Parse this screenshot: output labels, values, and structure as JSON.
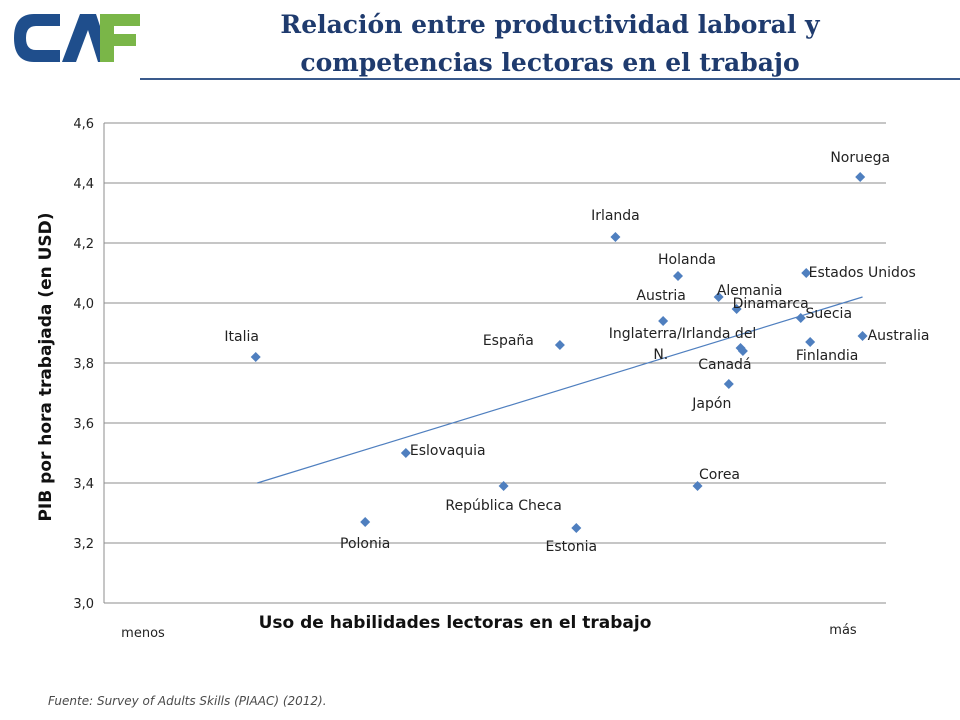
{
  "header": {
    "title_line1": "Relación entre productividad laboral y",
    "title_line2": "competencias lectoras en el trabajo",
    "logo_text": "CAF"
  },
  "colors": {
    "logo_blue": "#1f4e8c",
    "logo_green": "#7ab648",
    "title": "#1f3b6e",
    "marker": "#4f7fbf",
    "trendline": "#4f7fbf",
    "grid": "#8c8c8c"
  },
  "source": "Fuente:  Survey of Adults Skills (PIAAC) (2012).",
  "chart_data": {
    "type": "scatter",
    "title": "",
    "xlabel": "Uso de habilidades lectoras en el trabajo",
    "ylabel": "PIB por hora trabajada (en USD)",
    "x_low_label": "menos",
    "x_high_label": "más",
    "xlim": [
      0,
      100
    ],
    "ylim": [
      3.0,
      4.6
    ],
    "yticks": [
      3.0,
      3.2,
      3.4,
      3.6,
      3.8,
      4.0,
      4.2,
      4.4,
      4.6
    ],
    "ytick_labels": [
      "3,0",
      "3,2",
      "3,4",
      "3,6",
      "3,8",
      "4,0",
      "4,2",
      "4,4",
      "4,6"
    ],
    "grid": "horizontal",
    "points": [
      {
        "label": "Italia",
        "x": 19.4,
        "y": 3.82
      },
      {
        "label": "Polonia",
        "x": 33.4,
        "y": 3.27
      },
      {
        "label": "Eslovaquia",
        "x": 38.6,
        "y": 3.5
      },
      {
        "label": "República Checa",
        "x": 51.1,
        "y": 3.39
      },
      {
        "label": "Estonia",
        "x": 60.4,
        "y": 3.25
      },
      {
        "label": "España",
        "x": 58.3,
        "y": 3.86
      },
      {
        "label": "Irlanda",
        "x": 65.4,
        "y": 4.22
      },
      {
        "label": "Austria",
        "x": 71.5,
        "y": 3.94
      },
      {
        "label": "Holanda",
        "x": 73.4,
        "y": 4.09
      },
      {
        "label": "Alemania",
        "x": 78.6,
        "y": 4.02
      },
      {
        "label": "Dinamarca",
        "x": 80.9,
        "y": 3.98
      },
      {
        "label": "Inglaterra/Irlanda del N.",
        "x": 81.4,
        "y": 3.85
      },
      {
        "label": "Canadá",
        "x": 81.7,
        "y": 3.84
      },
      {
        "label": "Japón",
        "x": 79.9,
        "y": 3.73
      },
      {
        "label": "Corea",
        "x": 75.9,
        "y": 3.39
      },
      {
        "label": "Estados Unidos",
        "x": 89.8,
        "y": 4.1
      },
      {
        "label": "Suecia",
        "x": 89.1,
        "y": 3.95
      },
      {
        "label": "Finlandia",
        "x": 90.3,
        "y": 3.87
      },
      {
        "label": "Australia",
        "x": 97.0,
        "y": 3.89
      },
      {
        "label": "Noruega",
        "x": 96.7,
        "y": 4.42
      }
    ],
    "trendline": {
      "x": [
        19.6,
        97.0
      ],
      "y": [
        3.4,
        4.02
      ]
    }
  }
}
